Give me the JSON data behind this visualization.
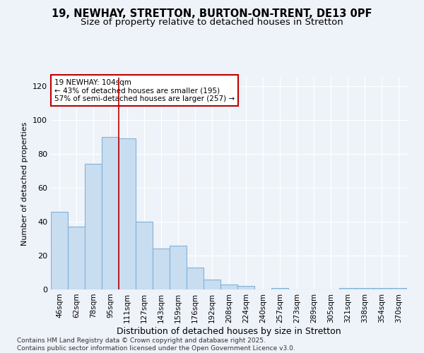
{
  "title1": "19, NEWHAY, STRETTON, BURTON-ON-TRENT, DE13 0PF",
  "title2": "Size of property relative to detached houses in Stretton",
  "xlabel": "Distribution of detached houses by size in Stretton",
  "ylabel": "Number of detached properties",
  "categories": [
    "46sqm",
    "62sqm",
    "78sqm",
    "95sqm",
    "111sqm",
    "127sqm",
    "143sqm",
    "159sqm",
    "176sqm",
    "192sqm",
    "208sqm",
    "224sqm",
    "240sqm",
    "257sqm",
    "273sqm",
    "289sqm",
    "305sqm",
    "321sqm",
    "338sqm",
    "354sqm",
    "370sqm"
  ],
  "values": [
    46,
    37,
    74,
    90,
    89,
    40,
    24,
    26,
    13,
    6,
    3,
    2,
    0,
    1,
    0,
    0,
    0,
    1,
    1,
    1,
    1
  ],
  "bar_color": "#c9ddf0",
  "bar_edge_color": "#7fb3d9",
  "vline_x_idx": 3.5,
  "vline_color": "#bb0000",
  "annotation_text": "19 NEWHAY: 104sqm\n← 43% of detached houses are smaller (195)\n57% of semi-detached houses are larger (257) →",
  "annotation_box_color": "white",
  "annotation_box_edgecolor": "#bb0000",
  "ylim": [
    0,
    125
  ],
  "yticks": [
    0,
    20,
    40,
    60,
    80,
    100,
    120
  ],
  "bg_color": "#eef2f9",
  "grid_color": "white",
  "footer": "Contains HM Land Registry data © Crown copyright and database right 2025.\nContains public sector information licensed under the Open Government Licence v3.0.",
  "title_fontsize": 10.5,
  "subtitle_fontsize": 9.5,
  "xlabel_fontsize": 9,
  "ylabel_fontsize": 8,
  "tick_fontsize": 7.5,
  "annotation_fontsize": 7.5,
  "footer_fontsize": 6.5
}
